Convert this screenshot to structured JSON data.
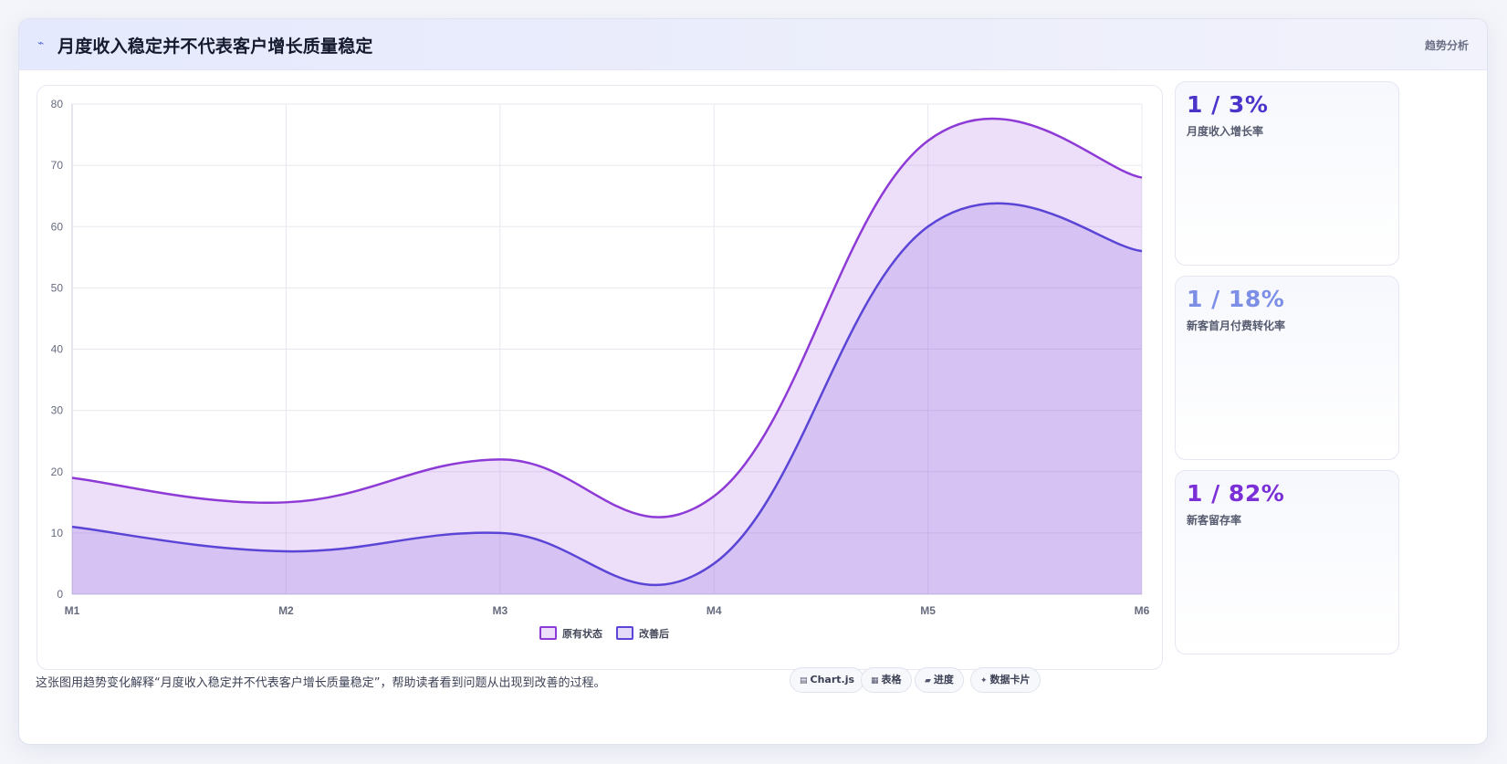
{
  "header": {
    "icon": "trend-line-icon",
    "title": "月度收入稳定并不代表客户增长质量稳定",
    "tag": "趋势分析"
  },
  "chart_data": {
    "type": "area",
    "categories": [
      "M1",
      "M2",
      "M3",
      "M4",
      "M5",
      "M6"
    ],
    "series": [
      {
        "name": "原有状态",
        "values": [
          19,
          15,
          22,
          16,
          74,
          68
        ],
        "color": "#8e3ad6"
      },
      {
        "name": "改善后",
        "values": [
          11,
          7,
          10,
          5,
          60,
          56
        ],
        "color": "#5b45d6"
      }
    ],
    "ylim": [
      0,
      80
    ],
    "yticks": [
      0,
      10,
      20,
      30,
      40,
      50,
      60,
      70,
      80
    ],
    "grid": true,
    "legend": "bottom",
    "title": "",
    "xlabel": "",
    "ylabel": ""
  },
  "kpis": [
    {
      "value": "1 / 3%",
      "label": "月度收入增长率",
      "color": "#4a34c9"
    },
    {
      "value": "1 / 18%",
      "label": "新客首月付费转化率",
      "color": "#7d8ee6"
    },
    {
      "value": "1 / 82%",
      "label": "新客留存率",
      "color": "#7b2fd6"
    }
  ],
  "caption": "这张图用趋势变化解释“月度收入稳定并不代表客户增长质量稳定”，帮助读者看到问题从出现到改善的过程。",
  "pills": [
    {
      "icon": "chart-icon",
      "glyph": "▤",
      "label": "Chart.js"
    },
    {
      "icon": "table-icon",
      "glyph": "▦",
      "label": "表格"
    },
    {
      "icon": "progress-icon",
      "glyph": "▰",
      "label": "进度"
    },
    {
      "icon": "sparkle-icon",
      "glyph": "✦",
      "label": "数据卡片"
    }
  ]
}
